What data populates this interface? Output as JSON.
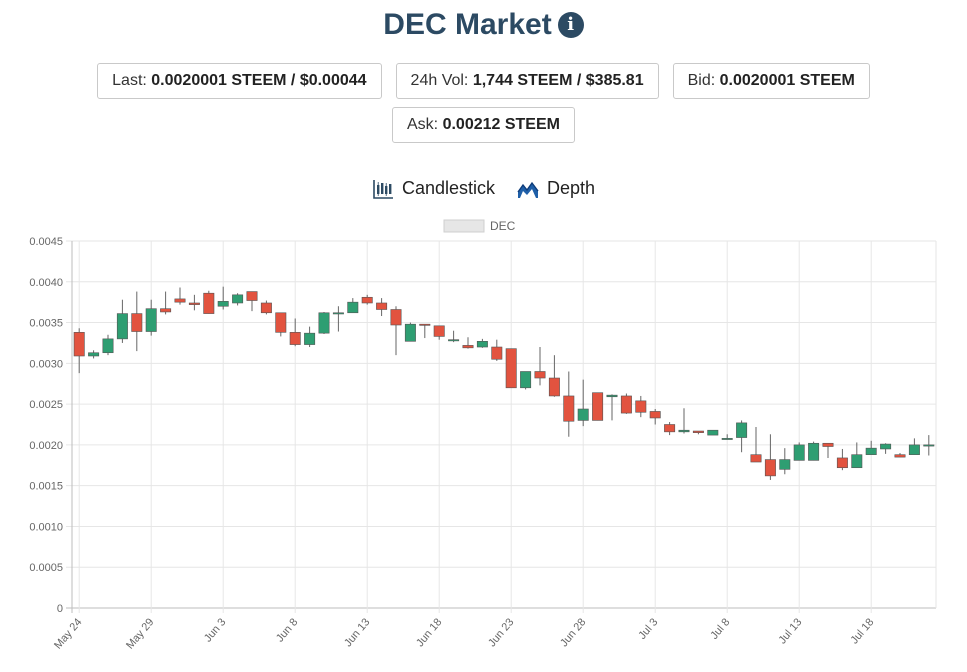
{
  "header": {
    "title": "DEC Market",
    "info_icon": "info-circle-icon"
  },
  "stats": {
    "last_label": "Last:",
    "last_value": "0.0020001 STEEM / $0.00044",
    "vol_label": "24h Vol:",
    "vol_value": "1,744 STEEM / $385.81",
    "bid_label": "Bid:",
    "bid_value": "0.0020001 STEEM",
    "ask_label": "Ask:",
    "ask_value": "0.00212 STEEM"
  },
  "tabs": [
    {
      "label": "Candlestick",
      "icon": "candlestick-chart-icon"
    },
    {
      "label": "Depth",
      "icon": "area-chart-icon"
    }
  ],
  "colors": {
    "up": "#2e9e72",
    "down": "#e2533f",
    "title": "#2c4a63",
    "wick": "#666666"
  },
  "chart_data": {
    "type": "candlestick",
    "legend": {
      "label": "DEC",
      "position": "top-center"
    },
    "grid": true,
    "ylim": [
      0,
      0.0045
    ],
    "yticks": [
      "0",
      "0.0005",
      "0.0010",
      "0.0015",
      "0.0020",
      "0.0025",
      "0.0030",
      "0.0035",
      "0.0040",
      "0.0045"
    ],
    "xticks": [
      "May 24",
      "May 29",
      "Jun 3",
      "Jun 8",
      "Jun 13",
      "Jun 18",
      "Jun 23",
      "Jun 28",
      "Jul 3",
      "Jul 8",
      "Jul 13",
      "Jul 18"
    ],
    "candles": [
      {
        "date": "May 24",
        "o": 0.00338,
        "h": 0.00343,
        "l": 0.00288,
        "c": 0.00309
      },
      {
        "date": "May 25",
        "o": 0.00309,
        "h": 0.00316,
        "l": 0.00306,
        "c": 0.00313
      },
      {
        "date": "May 26",
        "o": 0.00313,
        "h": 0.00335,
        "l": 0.0031,
        "c": 0.0033
      },
      {
        "date": "May 27",
        "o": 0.0033,
        "h": 0.00378,
        "l": 0.00325,
        "c": 0.00361
      },
      {
        "date": "May 28",
        "o": 0.00361,
        "h": 0.00388,
        "l": 0.00315,
        "c": 0.00339
      },
      {
        "date": "May 29",
        "o": 0.00339,
        "h": 0.00378,
        "l": 0.00334,
        "c": 0.00367
      },
      {
        "date": "May 30",
        "o": 0.00367,
        "h": 0.00388,
        "l": 0.0036,
        "c": 0.00363
      },
      {
        "date": "May 31",
        "o": 0.00379,
        "h": 0.00393,
        "l": 0.00372,
        "c": 0.00375
      },
      {
        "date": "Jun 1",
        "o": 0.00374,
        "h": 0.00384,
        "l": 0.00365,
        "c": 0.00372
      },
      {
        "date": "Jun 2",
        "o": 0.00386,
        "h": 0.00389,
        "l": 0.00361,
        "c": 0.00361
      },
      {
        "date": "Jun 3",
        "o": 0.0037,
        "h": 0.00394,
        "l": 0.00366,
        "c": 0.00376
      },
      {
        "date": "Jun 4",
        "o": 0.00374,
        "h": 0.00386,
        "l": 0.00371,
        "c": 0.00384
      },
      {
        "date": "Jun 5",
        "o": 0.00388,
        "h": 0.00388,
        "l": 0.00364,
        "c": 0.00377
      },
      {
        "date": "Jun 6",
        "o": 0.00374,
        "h": 0.00377,
        "l": 0.0036,
        "c": 0.00362
      },
      {
        "date": "Jun 7",
        "o": 0.00362,
        "h": 0.00362,
        "l": 0.00333,
        "c": 0.00338
      },
      {
        "date": "Jun 8",
        "o": 0.00338,
        "h": 0.00355,
        "l": 0.00321,
        "c": 0.00323
      },
      {
        "date": "Jun 9",
        "o": 0.00323,
        "h": 0.00345,
        "l": 0.0032,
        "c": 0.00337
      },
      {
        "date": "Jun 10",
        "o": 0.00337,
        "h": 0.00363,
        "l": 0.00336,
        "c": 0.00362
      },
      {
        "date": "Jun 11",
        "o": 0.00362,
        "h": 0.0037,
        "l": 0.00339,
        "c": 0.00362
      },
      {
        "date": "Jun 12",
        "o": 0.00362,
        "h": 0.0038,
        "l": 0.00362,
        "c": 0.00375
      },
      {
        "date": "Jun 13",
        "o": 0.00381,
        "h": 0.00384,
        "l": 0.00372,
        "c": 0.00374
      },
      {
        "date": "Jun 14",
        "o": 0.00374,
        "h": 0.0038,
        "l": 0.00358,
        "c": 0.00366
      },
      {
        "date": "Jun 15",
        "o": 0.00366,
        "h": 0.0037,
        "l": 0.0031,
        "c": 0.00347
      },
      {
        "date": "Jun 16",
        "o": 0.00327,
        "h": 0.0035,
        "l": 0.00327,
        "c": 0.00348
      },
      {
        "date": "Jun 17",
        "o": 0.00348,
        "h": 0.00348,
        "l": 0.00331,
        "c": 0.00347
      },
      {
        "date": "Jun 18",
        "o": 0.00346,
        "h": 0.00346,
        "l": 0.00329,
        "c": 0.00333
      },
      {
        "date": "Jun 19",
        "o": 0.00329,
        "h": 0.0034,
        "l": 0.00326,
        "c": 0.00329
      },
      {
        "date": "Jun 20",
        "o": 0.00322,
        "h": 0.00332,
        "l": 0.00318,
        "c": 0.00319
      },
      {
        "date": "Jun 21",
        "o": 0.0032,
        "h": 0.0033,
        "l": 0.00319,
        "c": 0.00327
      },
      {
        "date": "Jun 22",
        "o": 0.0032,
        "h": 0.00329,
        "l": 0.00303,
        "c": 0.00305
      },
      {
        "date": "Jun 23",
        "o": 0.00318,
        "h": 0.00318,
        "l": 0.0027,
        "c": 0.0027
      },
      {
        "date": "Jun 24",
        "o": 0.0027,
        "h": 0.0029,
        "l": 0.00268,
        "c": 0.0029
      },
      {
        "date": "Jun 25",
        "o": 0.0029,
        "h": 0.0032,
        "l": 0.00273,
        "c": 0.00282
      },
      {
        "date": "Jun 26",
        "o": 0.00282,
        "h": 0.0031,
        "l": 0.00259,
        "c": 0.0026
      },
      {
        "date": "Jun 27",
        "o": 0.0026,
        "h": 0.0029,
        "l": 0.0021,
        "c": 0.00229
      },
      {
        "date": "Jun 28",
        "o": 0.0023,
        "h": 0.0028,
        "l": 0.00223,
        "c": 0.00244
      },
      {
        "date": "Jun 29",
        "o": 0.00264,
        "h": 0.00264,
        "l": 0.0023,
        "c": 0.0023
      },
      {
        "date": "Jun 30",
        "o": 0.00259,
        "h": 0.00262,
        "l": 0.0023,
        "c": 0.00261
      },
      {
        "date": "Jul 1",
        "o": 0.0026,
        "h": 0.00263,
        "l": 0.00238,
        "c": 0.00239
      },
      {
        "date": "Jul 2",
        "o": 0.00254,
        "h": 0.0026,
        "l": 0.00234,
        "c": 0.0024
      },
      {
        "date": "Jul 3",
        "o": 0.00241,
        "h": 0.00244,
        "l": 0.00225,
        "c": 0.00233
      },
      {
        "date": "Jul 4",
        "o": 0.00225,
        "h": 0.00228,
        "l": 0.00212,
        "c": 0.00216
      },
      {
        "date": "Jul 5",
        "o": 0.00216,
        "h": 0.00245,
        "l": 0.00214,
        "c": 0.00218
      },
      {
        "date": "Jul 6",
        "o": 0.00217,
        "h": 0.00217,
        "l": 0.00213,
        "c": 0.00215
      },
      {
        "date": "Jul 7",
        "o": 0.00212,
        "h": 0.00218,
        "l": 0.00212,
        "c": 0.00218
      },
      {
        "date": "Jul 8",
        "o": 0.00208,
        "h": 0.00213,
        "l": 0.00208,
        "c": 0.00208
      },
      {
        "date": "Jul 9",
        "o": 0.00209,
        "h": 0.0023,
        "l": 0.00191,
        "c": 0.00227
      },
      {
        "date": "Jul 10",
        "o": 0.00188,
        "h": 0.00222,
        "l": 0.00183,
        "c": 0.00179
      },
      {
        "date": "Jul 11",
        "o": 0.00182,
        "h": 0.00213,
        "l": 0.00157,
        "c": 0.00162
      },
      {
        "date": "Jul 12",
        "o": 0.0017,
        "h": 0.00196,
        "l": 0.00164,
        "c": 0.00182
      },
      {
        "date": "Jul 13",
        "o": 0.00181,
        "h": 0.00203,
        "l": 0.00181,
        "c": 0.002
      },
      {
        "date": "Jul 14",
        "o": 0.00181,
        "h": 0.00204,
        "l": 0.00181,
        "c": 0.00202
      },
      {
        "date": "Jul 15",
        "o": 0.00202,
        "h": 0.00202,
        "l": 0.00184,
        "c": 0.00198
      },
      {
        "date": "Jul 16",
        "o": 0.00184,
        "h": 0.00195,
        "l": 0.00169,
        "c": 0.00172
      },
      {
        "date": "Jul 17",
        "o": 0.00172,
        "h": 0.00203,
        "l": 0.00172,
        "c": 0.00188
      },
      {
        "date": "Jul 18",
        "o": 0.00188,
        "h": 0.00205,
        "l": 0.00188,
        "c": 0.00196
      },
      {
        "date": "Jul 19",
        "o": 0.00195,
        "h": 0.00202,
        "l": 0.00189,
        "c": 0.00201
      },
      {
        "date": "Jul 20",
        "o": 0.00188,
        "h": 0.0019,
        "l": 0.00185,
        "c": 0.00185
      },
      {
        "date": "Jul 21",
        "o": 0.00188,
        "h": 0.00208,
        "l": 0.00188,
        "c": 0.002
      },
      {
        "date": "Jul 22",
        "o": 0.002,
        "h": 0.00212,
        "l": 0.00187,
        "c": 0.002
      }
    ]
  }
}
